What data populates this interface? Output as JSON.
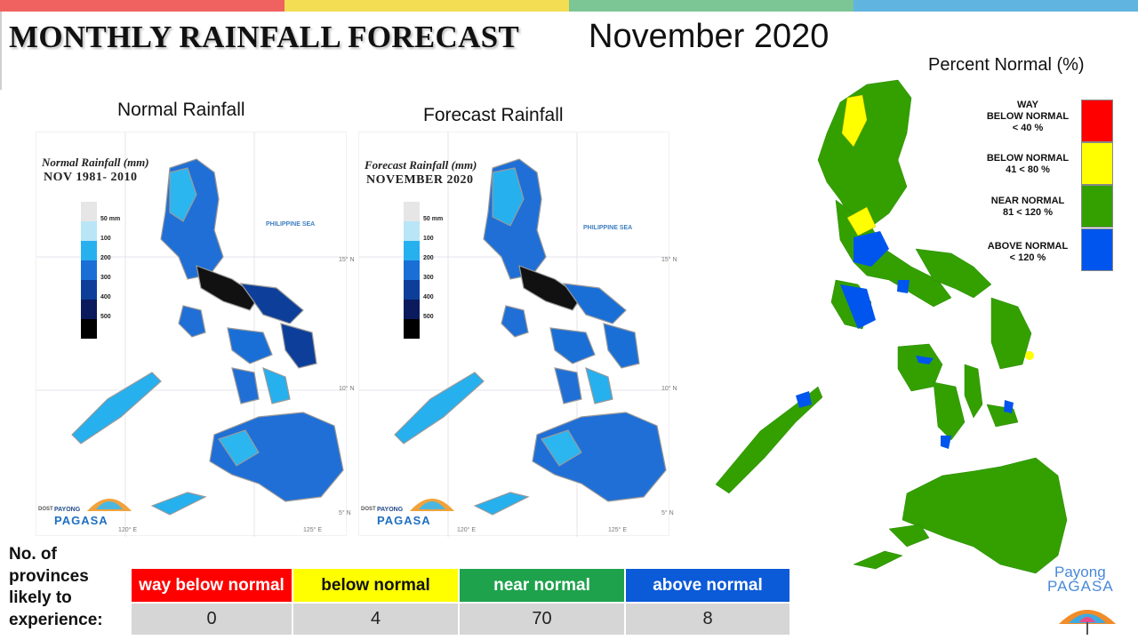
{
  "stripe_colors": [
    "#f0625f",
    "#f2dd53",
    "#7cc595",
    "#5fb5e0"
  ],
  "title": "MONTHLY RAINFALL FORECAST",
  "month": "November 2020",
  "normal_panel": {
    "heading": "Normal Rainfall",
    "caption": "Normal Rainfall (mm)",
    "period": "NOV 1981- 2010",
    "sea_label": "PHILIPPINE SEA"
  },
  "forecast_panel": {
    "heading": "Forecast Rainfall",
    "caption": "Forecast Rainfall (mm)",
    "period": "NOVEMBER 2020",
    "sea_label": "PHILIPPINE SEA"
  },
  "rain_scale": [
    {
      "label": "50 mm",
      "color": "#e6e6e6"
    },
    {
      "label": "100",
      "color": "#b8e6f7"
    },
    {
      "label": "200",
      "color": "#26b0ee"
    },
    {
      "label": "300",
      "color": "#1a6fd6"
    },
    {
      "label": "400",
      "color": "#0d3f9a"
    },
    {
      "label": "500",
      "color": "#0a1a5c"
    },
    {
      "label": "",
      "color": "#000000"
    }
  ],
  "map_ticks": {
    "lat_15": "15° N",
    "lat_10": "10° N",
    "lat_5": "5° N",
    "lon_120": "120° E",
    "lon_125": "125° E"
  },
  "small_logo": {
    "dost": "DOST",
    "payong": "PAYONG",
    "pagasa": "PAGASA"
  },
  "percent_normal": {
    "title": "Percent Normal (%)",
    "legend": [
      {
        "label": "WAY\nBELOW NORMAL\n< 40 %",
        "color": "#ff0000"
      },
      {
        "label": "BELOW NORMAL\n41 < 80 %",
        "color": "#ffff00"
      },
      {
        "label": "NEAR NORMAL\n81 < 120 %",
        "color": "#33a000"
      },
      {
        "label": "ABOVE NORMAL\n< 120 %",
        "color": "#0055ee"
      }
    ]
  },
  "provinces": {
    "label": "No. of\nprovinces\nlikely to\nexperience:",
    "categories": [
      {
        "name": "way below normal",
        "count": "0",
        "color": "#ff0000"
      },
      {
        "name": "below normal",
        "count": "4",
        "color": "#ffff00"
      },
      {
        "name": "near normal",
        "count": "70",
        "color": "#1fa24c"
      },
      {
        "name": "above normal",
        "count": "8",
        "color": "#0b5ad8"
      }
    ]
  },
  "brand": {
    "line1": "Payong",
    "line2": "PAGASA"
  }
}
